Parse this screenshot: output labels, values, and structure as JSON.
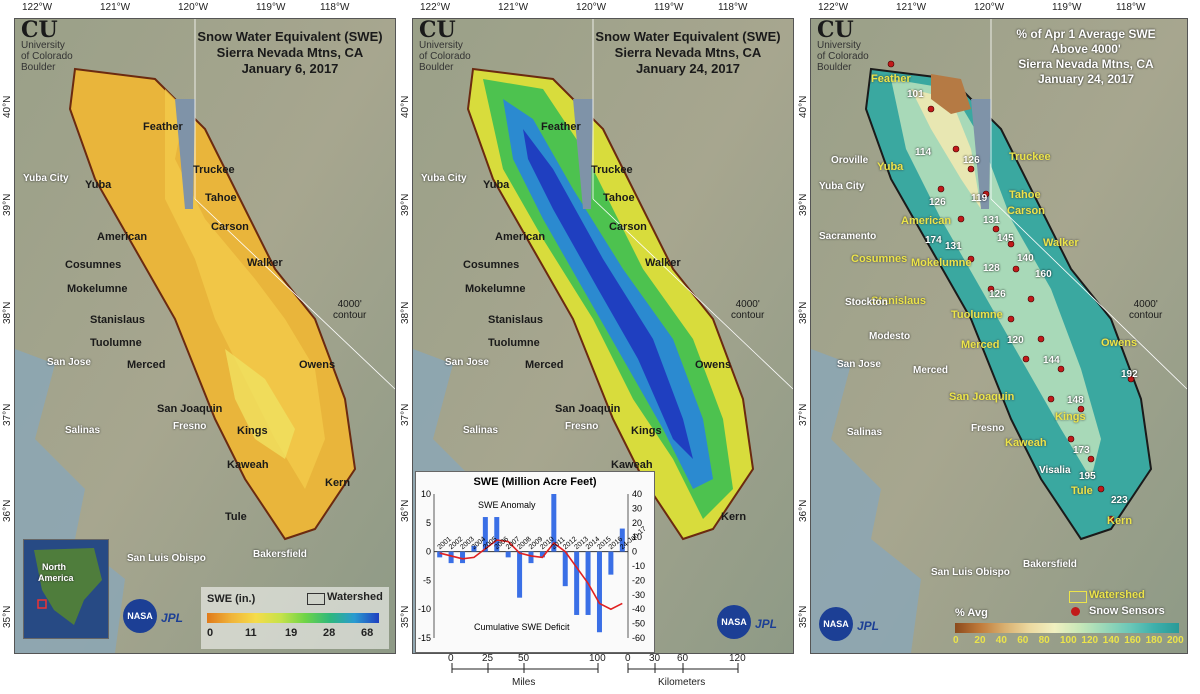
{
  "longitudes": [
    "122°W",
    "121°W",
    "120°W",
    "119°W",
    "118°W"
  ],
  "latitudes": [
    "40°N",
    "39°N",
    "38°N",
    "37°N",
    "36°N",
    "35°N"
  ],
  "university": {
    "line1": "University",
    "line2": "of Colorado",
    "line3": "Boulder"
  },
  "logos": {
    "nasa": "NASA",
    "jpl": "JPL"
  },
  "contour_label": {
    "line1": "4000'",
    "line2": "contour"
  },
  "panel1": {
    "title1": "Snow Water Equivalent (SWE)",
    "title2": "Sierra Nevada Mtns, CA",
    "title3": "January 6, 2017",
    "legend_title": "SWE (in.)",
    "legend_watershed": "Watershed",
    "legend_ticks": [
      "0",
      "11",
      "19",
      "28",
      "68"
    ],
    "inset_label1": "North",
    "inset_label2": "America"
  },
  "panel2": {
    "title1": "Snow Water Equivalent (SWE)",
    "title2": "Sierra Nevada Mtns, CA",
    "title3": "January 24, 2017"
  },
  "panel3": {
    "title1": "% of Apr 1 Average SWE",
    "title2": "Above 4000'",
    "title3": "Sierra Nevada Mtns, CA",
    "title4": "January 24, 2017",
    "legend_title": "% Avg",
    "legend_watershed": "Watershed",
    "legend_sensors": "Snow Sensors",
    "legend_ticks": [
      "0",
      "20",
      "40",
      "60",
      "80",
      "100",
      "120",
      "140",
      "160",
      "180",
      "200"
    ],
    "values": [
      "101",
      "114",
      "126",
      "126",
      "119",
      "131",
      "174",
      "131",
      "145",
      "128",
      "140",
      "160",
      "126",
      "120",
      "144",
      "192",
      "148",
      "173",
      "195",
      "223"
    ]
  },
  "basins": [
    "Feather",
    "Yuba",
    "Truckee",
    "Tahoe",
    "American",
    "Carson",
    "Cosumnes",
    "Walker",
    "Mokelumne",
    "Stanislaus",
    "Tuolumne",
    "Merced",
    "Owens",
    "San Joaquin",
    "Kings",
    "Kaweah",
    "Tule",
    "Kern"
  ],
  "cities": {
    "yuba_city": "Yuba City",
    "san_jose": "San Jose",
    "salinas": "Salinas",
    "fresno": "Fresno",
    "san_luis_obispo": "San Luis Obispo",
    "bakersfield": "Bakersfield",
    "oroville": "Oroville",
    "sacramento": "Sacramento",
    "stockton": "Stockton",
    "modesto": "Modesto",
    "merced": "Merced",
    "visalia": "Visalia"
  },
  "scalebar": {
    "miles_ticks": [
      "0",
      "25",
      "50",
      "100"
    ],
    "km_ticks": [
      "0",
      "30",
      "60",
      "120"
    ],
    "miles": "Miles",
    "km": "Kilometers"
  },
  "chart_data": {
    "type": "bar",
    "title": "SWE (Million Acre Feet)",
    "categories": [
      "2001",
      "2002",
      "2003",
      "2004",
      "2005",
      "2006",
      "2007",
      "2008",
      "2009",
      "2010",
      "2011",
      "2012",
      "2013",
      "2014",
      "2015",
      "2016",
      "24-Jan-17"
    ],
    "series": [
      {
        "name": "SWE Anomaly",
        "type": "bar",
        "values": [
          -1,
          -2,
          -2,
          1,
          6,
          6,
          -1,
          -8,
          -2,
          -1,
          10,
          -6,
          -11,
          -11,
          -14,
          -4,
          4
        ]
      },
      {
        "name": "Cumulative SWE Deficit",
        "type": "line",
        "values": [
          -1,
          -3,
          -5,
          -4,
          2,
          8,
          7,
          -1,
          -3,
          -4,
          6,
          0,
          -11,
          -22,
          -36,
          -40,
          -36
        ]
      }
    ],
    "y_left": [
      -15,
      10
    ],
    "y_left_ticks": [
      "10",
      "5",
      "0",
      "-5",
      "-10",
      "-15"
    ],
    "y_right": [
      -60,
      40
    ],
    "y_right_ticks": [
      "40",
      "30",
      "20",
      "10",
      "0",
      "-10",
      "-20",
      "-30",
      "-40",
      "-50",
      "-60"
    ],
    "annotations": [
      "SWE Anomaly",
      "Cumulative SWE Deficit"
    ],
    "colors": {
      "bar": "#3a6fe6",
      "line": "#e02020"
    }
  }
}
